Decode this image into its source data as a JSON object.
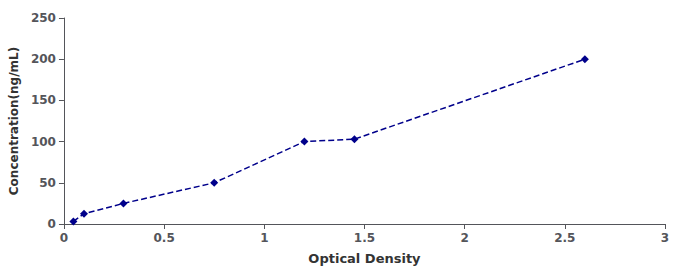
{
  "chart_data": {
    "type": "line",
    "x": [
      0.047,
      0.1,
      0.297,
      0.75,
      1.2,
      1.45,
      2.6
    ],
    "values": [
      3.1,
      12.5,
      25.0,
      50.0,
      100.0,
      103.0,
      200.0
    ],
    "color": "#00008B",
    "marker": "diamond",
    "line_style": "dashed",
    "xlabel": "Optical Density",
    "ylabel": "Concentration(ng/mL)",
    "xlim": [
      0,
      3
    ],
    "ylim": [
      0,
      250
    ],
    "xticks": [
      0,
      0.5,
      1,
      1.5,
      2,
      2.5,
      3
    ],
    "yticks": [
      0,
      50,
      100,
      150,
      200,
      250
    ],
    "grid": false
  }
}
